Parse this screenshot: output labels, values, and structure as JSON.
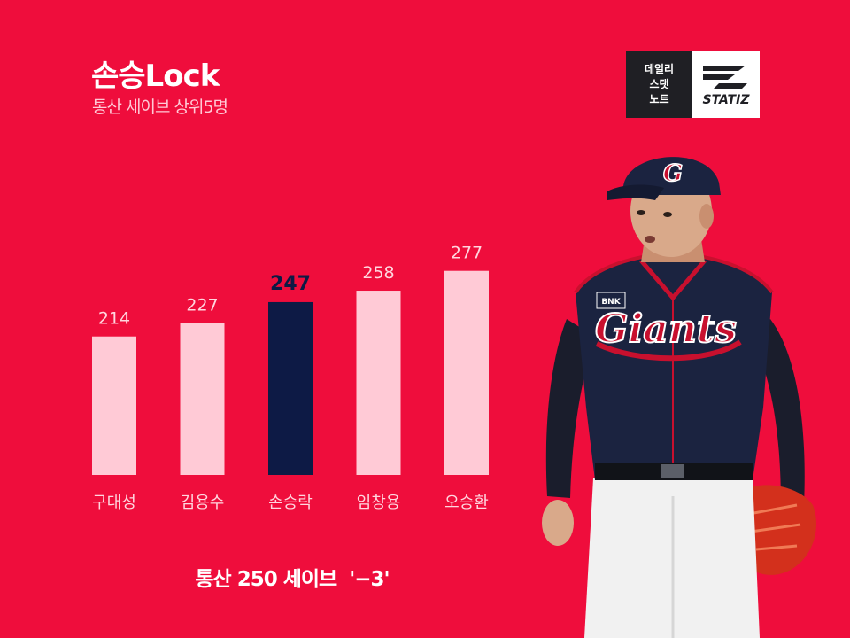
{
  "header": {
    "title": "손승Lock",
    "subtitle": "통산 세이브 상위5명"
  },
  "logo": {
    "lines": [
      "데일리",
      "스탯",
      "노트"
    ],
    "brand": "STATIZ"
  },
  "chart_data": {
    "type": "bar",
    "title": "손승Lock",
    "subtitle": "통산 세이브 상위5명",
    "categories": [
      "구대성",
      "김용수",
      "손승락",
      "임창용",
      "오승환"
    ],
    "values": [
      214,
      227,
      247,
      258,
      277
    ],
    "highlight_index": 2,
    "xlabel": "",
    "ylabel": "",
    "grid": false,
    "colors": {
      "bar": "#ffcad6",
      "highlight": "#0d1a45",
      "label": "#ffd6df",
      "highlight_label": "#0d1a45"
    }
  },
  "footnote": "통산 250 세이브  '−3'",
  "colors": {
    "background": "#ef0d3c",
    "jersey": "#1b2340"
  },
  "player": {
    "cap_logo": "G",
    "jersey_text": "Giants",
    "sponsor": "BNK"
  }
}
